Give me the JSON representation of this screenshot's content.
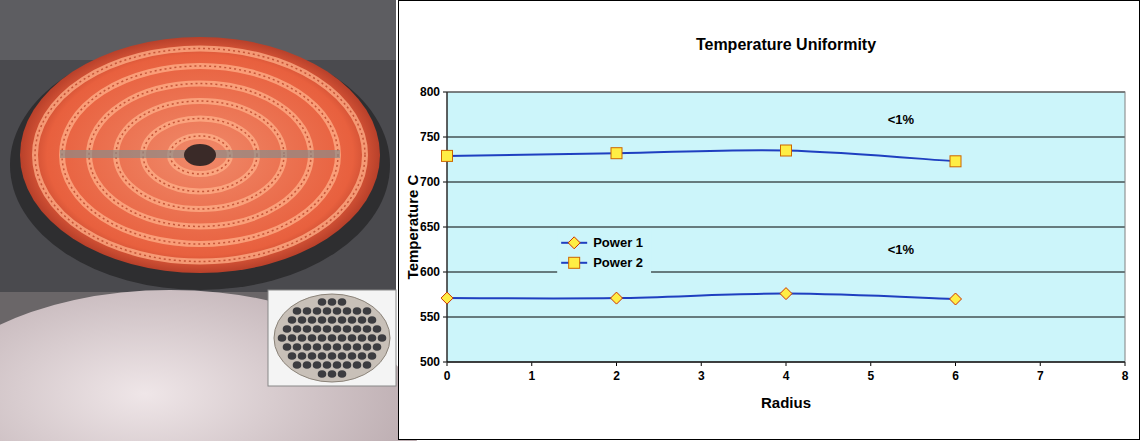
{
  "chart_data": {
    "type": "line",
    "title": "Temperature Uniformity",
    "x_label": "Radius",
    "y_label": "Temperature C",
    "x": [
      0,
      2,
      4,
      6
    ],
    "xlim": [
      0,
      8
    ],
    "xticks": [
      0,
      1,
      2,
      3,
      4,
      5,
      6,
      7,
      8
    ],
    "ylim": [
      500,
      800
    ],
    "yticks": [
      500,
      550,
      600,
      650,
      700,
      750,
      800
    ],
    "grid": true,
    "legend": "left",
    "line_style": "smooth",
    "series": [
      {
        "name": "Power 1",
        "color": "#1f3fc0",
        "marker": "diamond",
        "values": [
          571,
          571,
          576,
          570
        ]
      },
      {
        "name": "Power 2",
        "color": "#1f3fc0",
        "marker": "square",
        "values": [
          729,
          732,
          735,
          723
        ]
      }
    ],
    "annotations": [
      {
        "text": "<1%",
        "x": 5.2,
        "y": 765
      },
      {
        "text": "<1%",
        "x": 5.2,
        "y": 620
      }
    ]
  }
}
